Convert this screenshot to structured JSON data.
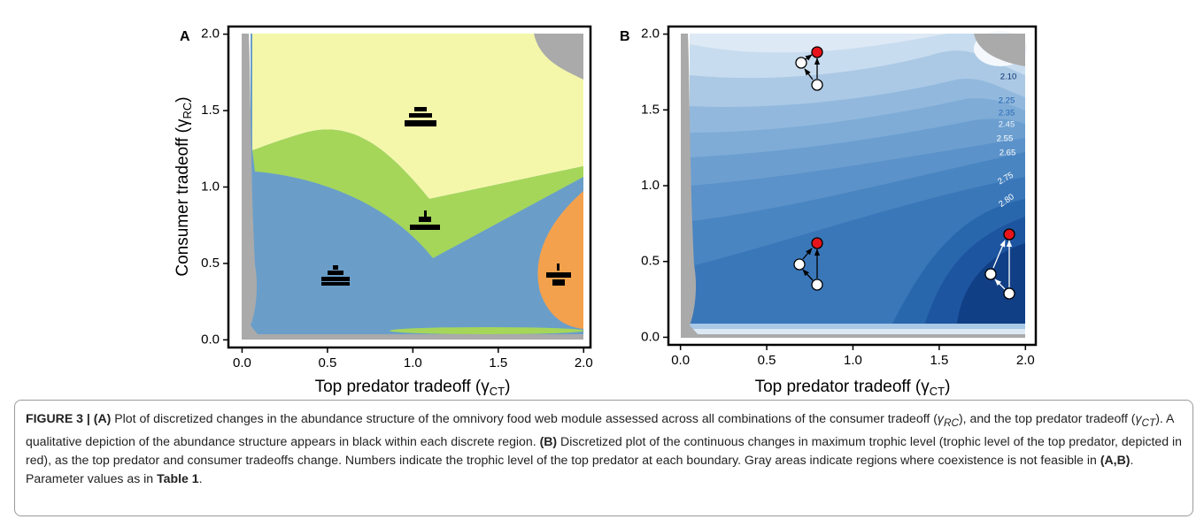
{
  "chart_data": [
    {
      "type": "region-map",
      "label": "A",
      "x_label": "Top predator tradeoff (γ",
      "x_label_sub": "CT",
      "x_label_end": ")",
      "y_label": "Consumer tradeoff (γ",
      "y_label_sub": "RC",
      "y_label_end": ")",
      "xlim": [
        -0.08,
        2.04
      ],
      "ylim": [
        -0.05,
        2.05
      ],
      "xticks": [
        {
          "value": 0,
          "label": "0.0"
        },
        {
          "value": 0.5,
          "label": "0.5"
        },
        {
          "value": 1,
          "label": "1.0"
        },
        {
          "value": 1.5,
          "label": "1.5"
        },
        {
          "value": 2,
          "label": "2.0"
        }
      ],
      "yticks": [
        {
          "value": 0,
          "label": "0.0"
        },
        {
          "value": 0.5,
          "label": "0.5"
        },
        {
          "value": 1,
          "label": "1.0"
        },
        {
          "value": 1.5,
          "label": "1.5"
        },
        {
          "value": 2,
          "label": "2.0"
        }
      ]
    },
    {
      "type": "contour-map",
      "label": "B",
      "x_label": "Top predator tradeoff (γ",
      "x_label_sub": "CT",
      "x_label_end": ")",
      "xlim": [
        -0.07,
        2.06
      ],
      "ylim": [
        -0.05,
        2.05
      ],
      "xticks": [
        {
          "value": 0,
          "label": "0.0"
        },
        {
          "value": 0.5,
          "label": "0.5"
        },
        {
          "value": 1,
          "label": "1.0"
        },
        {
          "value": 1.5,
          "label": "1.5"
        },
        {
          "value": 2,
          "label": "2.0"
        }
      ],
      "yticks": [
        {
          "value": 0,
          "label": "0.0"
        },
        {
          "value": 0.5,
          "label": "0.5"
        },
        {
          "value": 1,
          "label": "1.0"
        },
        {
          "value": 1.5,
          "label": "1.5"
        },
        {
          "value": 2,
          "label": "2.0"
        }
      ],
      "contour_labels": [
        "2.10",
        "2.25",
        "2.35",
        "2.45",
        "2.55",
        "2.65",
        "2.75",
        "2.80"
      ]
    }
  ],
  "caption": {
    "parts": [
      "FIGURE 3 | (A)",
      " Plot of discretized changes in the abundance structure of the omnivory food web module assessed across all combinations of the consumer tradeoff (",
      "γ",
      "RC",
      "), and the top predator tradeoff (",
      "γ",
      "CT",
      "). A qualitative depiction of the abundance structure appears in black within each discrete region. ",
      "(B)",
      " Discretized plot of the continuous changes in maximum trophic level (trophic level of the top predator, depicted in red), as the top predator and consumer tradeoffs change. Numbers indicate the trophic level of the top predator at each boundary. Gray areas indicate regions where coexistence is not feasible in ",
      "(A,B)",
      ". Parameter values as in ",
      "Table 1",
      "."
    ]
  }
}
